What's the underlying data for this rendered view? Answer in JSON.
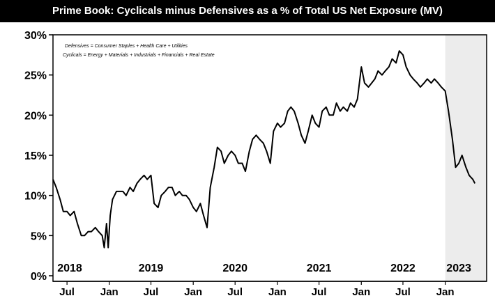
{
  "title": "Prime Book: Cyclicals minus Defensives as a % of Total US Net Exposure (MV)",
  "chart_data": {
    "type": "line",
    "title": "Prime Book: Cyclicals minus Defensives as a % of Total US Net Exposure (MV)",
    "xlabel": "",
    "ylabel": "",
    "ylim": [
      0,
      30
    ],
    "xlim": [
      "2018-05-01",
      "2023-06-30"
    ],
    "y_ticks": [
      "0%",
      "5%",
      "10%",
      "15%",
      "20%",
      "25%",
      "30%"
    ],
    "x_ticks": [
      {
        "label": "Jul",
        "date": "2018-07-01"
      },
      {
        "label": "Jan",
        "date": "2019-01-01"
      },
      {
        "label": "Jul",
        "date": "2019-07-01"
      },
      {
        "label": "Jan",
        "date": "2020-01-01"
      },
      {
        "label": "Jul",
        "date": "2020-07-01"
      },
      {
        "label": "Jan",
        "date": "2021-01-01"
      },
      {
        "label": "Jul",
        "date": "2021-07-01"
      },
      {
        "label": "Jan",
        "date": "2022-01-01"
      },
      {
        "label": "Jul",
        "date": "2022-07-01"
      },
      {
        "label": "Jan",
        "date": "2023-01-01"
      }
    ],
    "year_labels": [
      {
        "label": "2018",
        "date": "2018-09-01"
      },
      {
        "label": "2019",
        "date": "2019-07-01"
      },
      {
        "label": "2020",
        "date": "2020-07-01"
      },
      {
        "label": "2021",
        "date": "2021-07-01"
      },
      {
        "label": "2022",
        "date": "2022-07-01"
      },
      {
        "label": "2023",
        "date": "2023-03-01"
      }
    ],
    "annotations": [
      "Defensives = Consumer Staples + Health Care + Utilities",
      "Cyclicals = Energy + Materials + Industrials + Financials + Real Estate"
    ],
    "shaded_region": {
      "start": "2023-01-01",
      "end": "2023-06-30",
      "color": "#ececec"
    },
    "grid": false,
    "series": [
      {
        "color": "#000000",
        "x": [
          "2018-05-01",
          "2018-05-15",
          "2018-06-01",
          "2018-06-15",
          "2018-07-01",
          "2018-07-15",
          "2018-08-01",
          "2018-08-15",
          "2018-09-01",
          "2018-09-15",
          "2018-10-01",
          "2018-10-15",
          "2018-11-01",
          "2018-11-15",
          "2018-12-01",
          "2018-12-10",
          "2018-12-20",
          "2018-12-27",
          "2019-01-05",
          "2019-01-15",
          "2019-02-01",
          "2019-02-15",
          "2019-03-01",
          "2019-03-15",
          "2019-04-01",
          "2019-04-15",
          "2019-05-01",
          "2019-05-15",
          "2019-06-01",
          "2019-06-15",
          "2019-07-01",
          "2019-07-15",
          "2019-08-01",
          "2019-08-15",
          "2019-09-01",
          "2019-09-15",
          "2019-10-01",
          "2019-10-15",
          "2019-11-01",
          "2019-11-15",
          "2019-12-01",
          "2019-12-15",
          "2020-01-01",
          "2020-01-15",
          "2020-02-01",
          "2020-02-15",
          "2020-03-01",
          "2020-03-15",
          "2020-04-01",
          "2020-04-15",
          "2020-05-01",
          "2020-05-15",
          "2020-06-01",
          "2020-06-15",
          "2020-07-01",
          "2020-07-15",
          "2020-08-01",
          "2020-08-15",
          "2020-09-01",
          "2020-09-15",
          "2020-10-01",
          "2020-10-15",
          "2020-11-01",
          "2020-11-15",
          "2020-12-01",
          "2020-12-15",
          "2021-01-01",
          "2021-01-15",
          "2021-02-01",
          "2021-02-15",
          "2021-03-01",
          "2021-03-15",
          "2021-04-01",
          "2021-04-15",
          "2021-05-01",
          "2021-05-15",
          "2021-06-01",
          "2021-06-15",
          "2021-07-01",
          "2021-07-15",
          "2021-08-01",
          "2021-08-15",
          "2021-09-01",
          "2021-09-15",
          "2021-10-01",
          "2021-10-15",
          "2021-11-01",
          "2021-11-15",
          "2021-12-01",
          "2021-12-15",
          "2022-01-01",
          "2022-01-15",
          "2022-02-01",
          "2022-02-15",
          "2022-03-01",
          "2022-03-15",
          "2022-04-01",
          "2022-04-15",
          "2022-05-01",
          "2022-05-15",
          "2022-06-01",
          "2022-06-15",
          "2022-07-01",
          "2022-07-15",
          "2022-08-01",
          "2022-08-15",
          "2022-09-01",
          "2022-09-15",
          "2022-10-01",
          "2022-10-15",
          "2022-11-01",
          "2022-11-15",
          "2022-12-01",
          "2022-12-15",
          "2023-01-01",
          "2023-01-15",
          "2023-02-01",
          "2023-02-15",
          "2023-03-01",
          "2023-03-15",
          "2023-04-01",
          "2023-04-15",
          "2023-05-01",
          "2023-05-10"
        ],
        "values": [
          12.0,
          11.0,
          9.5,
          8.0,
          8.0,
          7.5,
          8.0,
          6.5,
          5.0,
          5.0,
          5.5,
          5.5,
          6.0,
          5.5,
          5.0,
          3.5,
          6.5,
          3.5,
          7.5,
          9.5,
          10.5,
          10.5,
          10.5,
          10.0,
          11.0,
          10.5,
          11.5,
          12.0,
          12.5,
          12.0,
          12.5,
          9.0,
          8.5,
          10.0,
          10.5,
          11.0,
          11.0,
          10.0,
          10.5,
          10.0,
          10.0,
          9.5,
          8.5,
          8.0,
          9.0,
          7.5,
          6.0,
          11.0,
          13.5,
          16.0,
          15.5,
          14.0,
          15.0,
          15.5,
          15.0,
          14.0,
          14.0,
          13.0,
          15.5,
          17.0,
          17.5,
          17.0,
          16.5,
          15.5,
          14.0,
          18.0,
          19.0,
          18.5,
          19.0,
          20.5,
          21.0,
          20.5,
          19.0,
          17.5,
          16.5,
          18.0,
          20.0,
          19.0,
          18.5,
          20.5,
          21.0,
          20.0,
          20.0,
          21.5,
          20.5,
          21.0,
          20.5,
          21.5,
          21.0,
          22.0,
          26.0,
          24.0,
          23.5,
          24.0,
          24.5,
          25.5,
          25.0,
          25.5,
          26.0,
          27.0,
          26.5,
          28.0,
          27.5,
          26.0,
          25.0,
          24.5,
          24.0,
          23.5,
          24.0,
          24.5,
          24.0,
          24.5,
          24.0,
          23.5,
          23.0,
          20.5,
          17.0,
          13.5,
          14.0,
          15.0,
          13.5,
          12.5,
          12.0,
          11.5
        ]
      }
    ]
  }
}
